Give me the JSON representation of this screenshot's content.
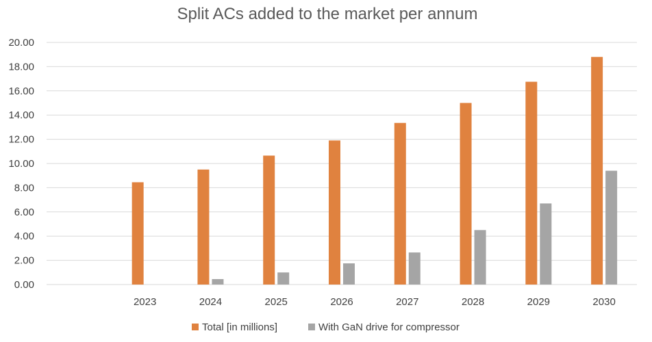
{
  "chart_data": {
    "type": "bar",
    "title": "Split ACs added to the market per annum",
    "xlabel": "",
    "ylabel": "",
    "ylim": [
      0,
      20
    ],
    "yticks": [
      "0.00",
      "2.00",
      "4.00",
      "6.00",
      "8.00",
      "10.00",
      "12.00",
      "14.00",
      "16.00",
      "18.00",
      "20.00"
    ],
    "grid": true,
    "legend_position": "bottom",
    "categories": [
      "",
      "2023",
      "2024",
      "2025",
      "2026",
      "2027",
      "2028",
      "2029",
      "2030"
    ],
    "series": [
      {
        "name": "Total [in millions]",
        "color": "#E0823F",
        "values": [
          null,
          8.45,
          9.5,
          10.65,
          11.9,
          13.35,
          15.0,
          16.75,
          18.8
        ]
      },
      {
        "name": "With GaN drive for compressor",
        "color": "#A5A5A5",
        "values": [
          null,
          0,
          0.45,
          1.0,
          1.75,
          2.65,
          4.5,
          6.7,
          9.4
        ]
      }
    ]
  }
}
